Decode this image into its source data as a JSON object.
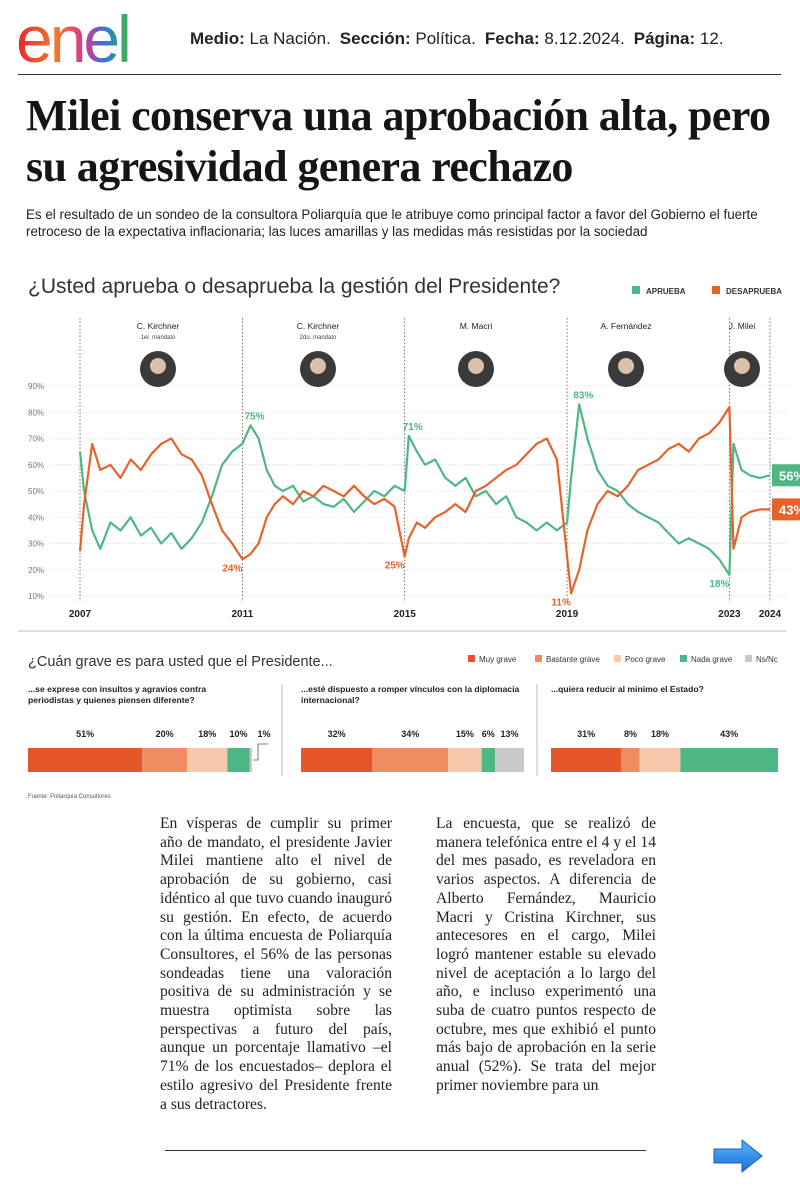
{
  "header": {
    "logo": "enel",
    "meta": [
      {
        "label": "Medio:",
        "value": "La Nación."
      },
      {
        "label": "Sección:",
        "value": "Política."
      },
      {
        "label": "Fecha:",
        "value": "8.12.2024."
      },
      {
        "label": "Página:",
        "value": "12."
      }
    ]
  },
  "article": {
    "title": "Milei conserva una aprobación alta, pero su agresividad genera rechazo",
    "subtitle": "Es el resultado de un sondeo de la consultora Poliarquía que le atribuye como principal factor a favor del Gobierno el fuerte retroceso de la expectativa inflacionaria; las luces amarillas y las medidas más resistidas por la sociedad",
    "columns": [
      "En vísperas de cumplir su primer año de mandato, el presidente Javier Milei mantiene alto el nivel de aprobación de su gobierno, casi idéntico al que tuvo cuando inauguró su gestión. En efecto, de acuerdo con la última encuesta de Poliarquía Consultores, el 56% de las personas sondeadas tiene una valoración positiva de su administración y se muestra optimista sobre las perspectivas a futuro del país, aunque un porcentaje llamativo –el 71% de los encuestados– deplora el estilo agresivo del Presidente frente a sus detractores.",
      "La encuesta, que se realizó de manera telefónica entre el 4 y el 14 del mes pasado, es reveladora en varios aspectos. A diferencia de Alberto Fernández, Mauricio Macri y Cristina Kirchner, sus antecesores en el cargo, Milei logró mantener estable su elevado nivel de aceptación a lo largo del año, e incluso experimentó una suba de cuatro puntos respecto de octubre, mes que exhibió el punto más bajo de aprobación en la serie anual (52%). Se trata del mejor primer noviembre para un"
    ]
  },
  "chart_data": [
    {
      "type": "line",
      "title": "¿Usted aprueba o desaprueba la gestión del Presidente?",
      "x": [
        2007,
        2007.1,
        2007.3,
        2007.5,
        2007.75,
        2008,
        2008.25,
        2008.5,
        2008.75,
        2009,
        2009.25,
        2009.5,
        2009.75,
        2010,
        2010.25,
        2010.5,
        2010.75,
        2011,
        2011.2,
        2011.4,
        2011.6,
        2011.8,
        2012,
        2012.25,
        2012.5,
        2012.75,
        2013,
        2013.25,
        2013.5,
        2013.75,
        2014,
        2014.25,
        2014.5,
        2014.75,
        2015,
        2015.1,
        2015.3,
        2015.5,
        2015.75,
        2016,
        2016.25,
        2016.5,
        2016.75,
        2017,
        2017.25,
        2017.5,
        2017.75,
        2018,
        2018.25,
        2018.5,
        2018.75,
        2019,
        2019.1,
        2019.3,
        2019.5,
        2019.75,
        2020,
        2020.25,
        2020.5,
        2020.75,
        2021,
        2021.25,
        2021.5,
        2021.75,
        2022,
        2022.25,
        2022.5,
        2022.75,
        2023,
        2023.1,
        2023.3,
        2023.5,
        2023.75,
        2024
      ],
      "xlim": [
        2007,
        2024
      ],
      "xticks": [
        2007,
        2011,
        2015,
        2019,
        2023,
        2024
      ],
      "ylim": [
        10,
        90
      ],
      "yticks": [
        {
          "value": 10,
          "label": "10%"
        },
        {
          "value": 20,
          "label": "20%"
        },
        {
          "value": 30,
          "label": "30%"
        },
        {
          "value": 40,
          "label": "40%"
        },
        {
          "value": 50,
          "label": "50%"
        },
        {
          "value": 60,
          "label": "60%"
        },
        {
          "value": 70,
          "label": "70%"
        },
        {
          "value": 80,
          "label": "80%"
        },
        {
          "value": 90,
          "label": "90%"
        }
      ],
      "grid": true,
      "legend": "top-right",
      "periods": [
        {
          "name": "C. Kirchner",
          "note": "1er. mandato"
        },
        {
          "name": "C. Kirchner",
          "note": "2do. mandato"
        },
        {
          "name": "M. Macri"
        },
        {
          "name": "A. Fernández"
        },
        {
          "name": "J. Milei"
        }
      ],
      "series": [
        {
          "name": "APRUEBA",
          "color": "#4fb783",
          "values": [
            65,
            50,
            35,
            28,
            38,
            35,
            40,
            33,
            36,
            30,
            34,
            28,
            32,
            38,
            48,
            60,
            65,
            68,
            75,
            70,
            58,
            52,
            50,
            52,
            46,
            48,
            45,
            44,
            47,
            42,
            46,
            50,
            48,
            52,
            50,
            71,
            65,
            60,
            62,
            55,
            52,
            55,
            48,
            50,
            45,
            48,
            40,
            38,
            35,
            38,
            35,
            38,
            55,
            83,
            70,
            58,
            52,
            50,
            45,
            42,
            40,
            38,
            34,
            30,
            32,
            30,
            28,
            24,
            18,
            68,
            58,
            56,
            55,
            56
          ],
          "value_labels": [
            null,
            null,
            null,
            null,
            null,
            null,
            null,
            null,
            null,
            null,
            null,
            null,
            null,
            null,
            null,
            null,
            null,
            null,
            "75%",
            null,
            null,
            null,
            null,
            null,
            null,
            null,
            null,
            null,
            null,
            null,
            null,
            null,
            null,
            null,
            null,
            "71%",
            null,
            null,
            null,
            null,
            null,
            null,
            null,
            null,
            null,
            null,
            null,
            null,
            null,
            null,
            null,
            null,
            null,
            "83%",
            null,
            null,
            null,
            null,
            null,
            null,
            null,
            null,
            null,
            null,
            null,
            null,
            null,
            null,
            "18%",
            null,
            null,
            null,
            null,
            "56%"
          ]
        },
        {
          "name": "DESAPRUEBA",
          "color": "#e5632b",
          "values": [
            27,
            45,
            68,
            58,
            60,
            55,
            62,
            58,
            64,
            68,
            70,
            64,
            62,
            56,
            45,
            35,
            30,
            24,
            26,
            30,
            40,
            45,
            48,
            45,
            50,
            48,
            52,
            50,
            48,
            52,
            48,
            45,
            47,
            44,
            25,
            32,
            38,
            36,
            40,
            42,
            45,
            42,
            50,
            52,
            55,
            58,
            60,
            64,
            68,
            70,
            62,
            25,
            11,
            20,
            35,
            45,
            50,
            48,
            52,
            58,
            60,
            62,
            66,
            68,
            65,
            70,
            72,
            76,
            82,
            28,
            40,
            42,
            43,
            43
          ],
          "value_labels": [
            null,
            null,
            null,
            null,
            null,
            null,
            null,
            null,
            null,
            null,
            null,
            null,
            null,
            null,
            null,
            null,
            null,
            "24%",
            null,
            null,
            null,
            null,
            null,
            null,
            null,
            null,
            null,
            null,
            null,
            null,
            null,
            null,
            null,
            null,
            "25%",
            null,
            null,
            null,
            null,
            null,
            null,
            null,
            null,
            null,
            null,
            null,
            null,
            null,
            null,
            null,
            null,
            null,
            "11%",
            null,
            null,
            null,
            null,
            null,
            null,
            null,
            null,
            null,
            null,
            null,
            null,
            null,
            null,
            null,
            null,
            null,
            null,
            null,
            null,
            "43%"
          ]
        }
      ]
    },
    {
      "type": "stacked_barh",
      "title": "¿Cuán grave es para usted que el Presidente...",
      "categories": [
        "...se exprese con insultos y agravios contra periodistas y quienes piensen diferente?",
        "...esté dispuesto a romper vínculos con la diplomacia internacional?",
        "...quiera reducir al mínimo el Estado?"
      ],
      "xlim": [
        0,
        100
      ],
      "legend": "top-right",
      "series": [
        {
          "name": "Muy grave",
          "color": "#e5562a",
          "values": [
            51,
            32,
            31
          ],
          "value_labels": [
            "51%",
            "32%",
            "31%"
          ]
        },
        {
          "name": "Bastante grave",
          "color": "#ef8c60",
          "values": [
            20,
            34,
            8
          ],
          "value_labels": [
            "20%",
            "34%",
            "8%"
          ]
        },
        {
          "name": "Poco grave",
          "color": "#f8c8ab",
          "values": [
            18,
            15,
            18
          ],
          "value_labels": [
            "18%",
            "15%",
            "18%"
          ]
        },
        {
          "name": "Nada grave",
          "color": "#4fb783",
          "values": [
            10,
            6,
            43
          ],
          "value_labels": [
            "10%",
            "6%",
            "43%"
          ]
        },
        {
          "name": "Ns/Nc",
          "color": "#c8c8c8",
          "values": [
            1,
            13,
            null
          ],
          "value_labels": [
            "1%",
            "13%",
            null
          ]
        }
      ]
    }
  ],
  "source": "Fuente: Poliarquía Consultores"
}
